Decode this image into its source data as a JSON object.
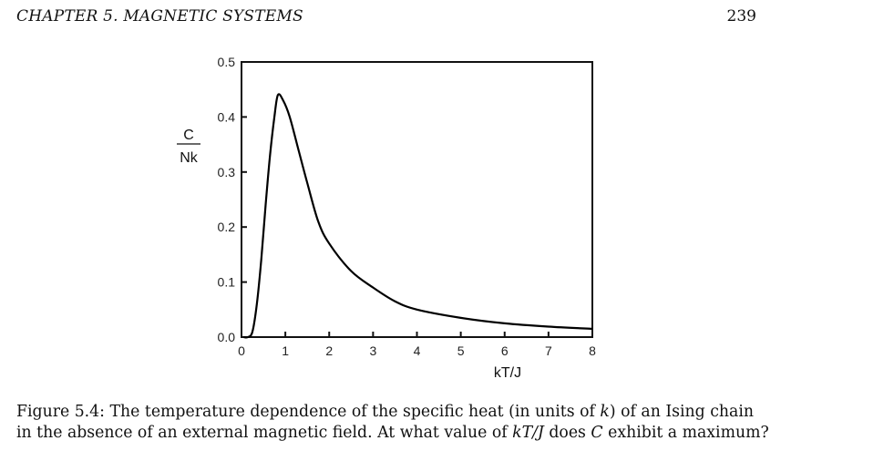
{
  "header": {
    "left": "CHAPTER 5.   MAGNETIC SYSTEMS",
    "page_number": "239"
  },
  "chart_data": {
    "type": "line",
    "xlabel": "kT/J",
    "ylabel_numerator": "C",
    "ylabel_denominator": "Nk",
    "xlim": [
      0,
      8
    ],
    "ylim": [
      0,
      0.5
    ],
    "xticks": [
      "0",
      "1",
      "2",
      "3",
      "4",
      "5",
      "6",
      "7",
      "8"
    ],
    "yticks": [
      "0.0",
      "0.1",
      "0.2",
      "0.3",
      "0.4",
      "0.5"
    ],
    "grid": false,
    "series": [
      {
        "x": [
          0.05,
          0.15,
          0.25,
          0.35,
          0.45,
          0.55,
          0.65,
          0.75,
          0.83,
          0.95,
          1.1,
          1.3,
          1.5,
          1.75,
          2.0,
          2.5,
          3.0,
          3.5,
          4.0,
          5.0,
          6.0,
          7.0,
          8.0
        ],
        "y": [
          0.0,
          0.0,
          0.01,
          0.06,
          0.14,
          0.24,
          0.33,
          0.4,
          0.44,
          0.43,
          0.4,
          0.34,
          0.28,
          0.21,
          0.17,
          0.12,
          0.09,
          0.065,
          0.05,
          0.035,
          0.025,
          0.019,
          0.015
        ]
      }
    ]
  },
  "caption": {
    "label": "Figure 5.4:",
    "text_1": " The temperature dependence of the specific heat (in units of ",
    "k": "k",
    "text_2": ") of an Ising chain in the absence of an external magnetic field. At what value of ",
    "kTJ": "kT/J",
    "text_3": " does ",
    "C": "C",
    "text_4": " exhibit a maximum?"
  }
}
